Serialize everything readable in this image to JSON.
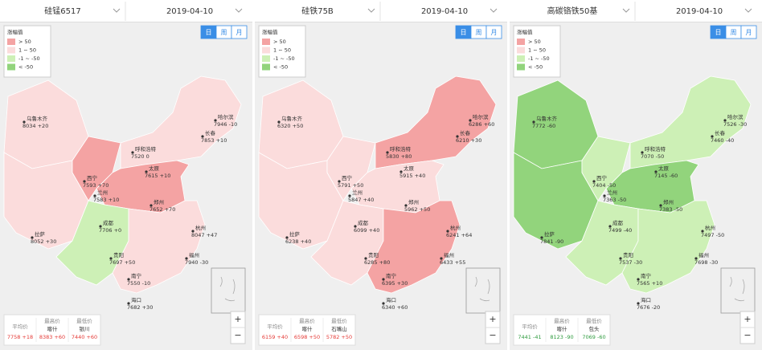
{
  "panels": [
    {
      "product": "硅锰6517",
      "date": "2019-04-10",
      "tabs": [
        "日",
        "周",
        "月"
      ],
      "legend": {
        "title": "涨幅值",
        "items": [
          {
            "label": "> 50",
            "color": "#f4a3a3"
          },
          {
            "label": "1 ~ 50",
            "color": "#fbdcdc"
          },
          {
            "label": "-1 ~ -50",
            "color": "#cdf0b6"
          },
          {
            "label": "< -50",
            "color": "#92d47c"
          }
        ]
      },
      "summary_color": "#e53935",
      "summary": [
        {
          "label": "平均价",
          "value": "7758 +18"
        },
        {
          "label": "最高价",
          "city": "喀什",
          "value": "8383 +60"
        },
        {
          "label": "最低价",
          "city": "银川",
          "value": "7440 +60"
        }
      ],
      "cities": [
        {
          "name": "乌鲁木齐",
          "value": "8034 +20"
        },
        {
          "name": "拉萨",
          "value": "8052 +30"
        },
        {
          "name": "哈尔滨",
          "value": "7946 -10"
        },
        {
          "name": "长春",
          "value": "7853 +10"
        },
        {
          "name": "呼和浩特",
          "value": "7520 0"
        },
        {
          "name": "西宁",
          "value": "7593 +70"
        },
        {
          "name": "兰州",
          "value": "7583 +10"
        },
        {
          "name": "成都",
          "value": "7706 +0"
        },
        {
          "name": "贵阳",
          "value": "7697 +50"
        },
        {
          "name": "南宁",
          "value": "7550 -10"
        },
        {
          "name": "海口",
          "value": "7682 +30"
        },
        {
          "name": "福州",
          "value": "7940 -30"
        },
        {
          "name": "杭州",
          "value": "8047 +47"
        },
        {
          "name": "郑州",
          "value": "7652 +70"
        },
        {
          "name": "太原",
          "value": "7615 +10"
        }
      ]
    },
    {
      "product": "硅铁75B",
      "date": "2019-04-10",
      "tabs": [
        "日",
        "周",
        "月"
      ],
      "legend": {
        "title": "涨幅值",
        "items": [
          {
            "label": "> 50",
            "color": "#f4a3a3"
          },
          {
            "label": "1 ~ 50",
            "color": "#fbdcdc"
          },
          {
            "label": "-1 ~ -50",
            "color": "#cdf0b6"
          },
          {
            "label": "< -50",
            "color": "#92d47c"
          }
        ]
      },
      "summary_color": "#e53935",
      "summary": [
        {
          "label": "平均价",
          "value": "6159 +40"
        },
        {
          "label": "最高价",
          "city": "喀什",
          "value": "6598 +50"
        },
        {
          "label": "最低价",
          "city": "石嘴山",
          "value": "5782 +50"
        }
      ],
      "cities": [
        {
          "name": "乌鲁木齐",
          "value": "6320 +50"
        },
        {
          "name": "拉萨",
          "value": "6238 +40"
        },
        {
          "name": "哈尔滨",
          "value": "6286 +60"
        },
        {
          "name": "长春",
          "value": "6210 +30"
        },
        {
          "name": "呼和浩特",
          "value": "5830 +80"
        },
        {
          "name": "西宁",
          "value": "5791 +50"
        },
        {
          "name": "兰州",
          "value": "5847 +40"
        },
        {
          "name": "成都",
          "value": "6099 +40"
        },
        {
          "name": "贵阳",
          "value": "6285 +80"
        },
        {
          "name": "南宁",
          "value": "6395 +30"
        },
        {
          "name": "海口",
          "value": "6340 +60"
        },
        {
          "name": "福州",
          "value": "6433 +55"
        },
        {
          "name": "杭州",
          "value": "6241 +64"
        },
        {
          "name": "郑州",
          "value": "5962 +50"
        },
        {
          "name": "太原",
          "value": "5915 +40"
        }
      ]
    },
    {
      "product": "高碳铬铁50基",
      "date": "2019-04-10",
      "tabs": [
        "日",
        "周",
        "月"
      ],
      "legend": {
        "title": "涨幅值",
        "items": [
          {
            "label": "> 50",
            "color": "#f4a3a3"
          },
          {
            "label": "1 ~ 50",
            "color": "#fbdcdc"
          },
          {
            "label": "-1 ~ -50",
            "color": "#cdf0b6"
          },
          {
            "label": "< -50",
            "color": "#92d47c"
          }
        ]
      },
      "summary_color": "#2e9b3e",
      "summary": [
        {
          "label": "平均价",
          "value": "7441 -41"
        },
        {
          "label": "最高价",
          "city": "喀什",
          "value": "8123 -90"
        },
        {
          "label": "最低价",
          "city": "包头",
          "value": "7069 -60"
        }
      ],
      "cities": [
        {
          "name": "乌鲁木齐",
          "value": "7772 -60"
        },
        {
          "name": "拉萨",
          "value": "7841 -90"
        },
        {
          "name": "哈尔滨",
          "value": "7526 -30"
        },
        {
          "name": "长春",
          "value": "7460 -40"
        },
        {
          "name": "呼和浩特",
          "value": "7070 -50"
        },
        {
          "name": "西宁",
          "value": "7404 -50"
        },
        {
          "name": "兰州",
          "value": "7363 -50"
        },
        {
          "name": "成都",
          "value": "7499 -40"
        },
        {
          "name": "贵阳",
          "value": "7537 -30"
        },
        {
          "name": "南宁",
          "value": "7565 +10"
        },
        {
          "name": "海口",
          "value": "7676 -20"
        },
        {
          "name": "福州",
          "value": "7698 -30"
        },
        {
          "name": "杭州",
          "value": "7497 -50"
        },
        {
          "name": "郑州",
          "value": "7383 -50"
        },
        {
          "name": "太原",
          "value": "7145 -60"
        }
      ]
    }
  ],
  "zoom": [
    "+",
    "−"
  ]
}
